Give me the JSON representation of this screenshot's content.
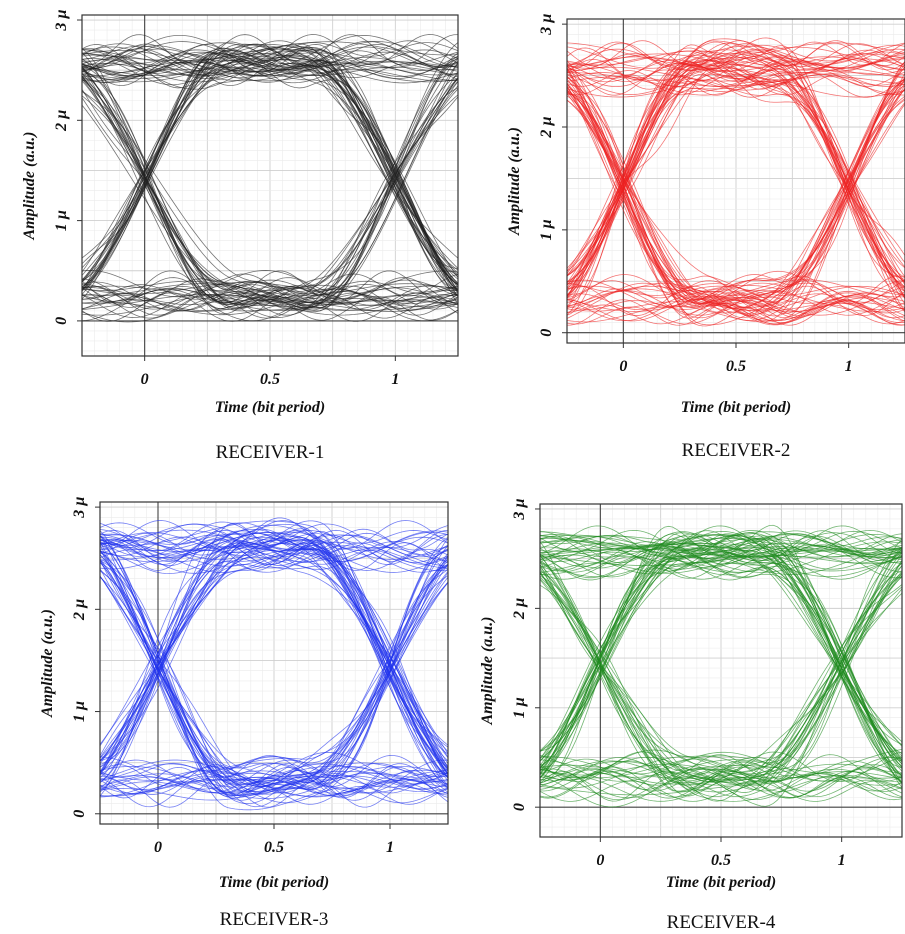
{
  "chart_data": [
    {
      "type": "line",
      "subtype": "eye-diagram",
      "caption": "RECEIVER-1",
      "xlabel": "Time (bit period)",
      "ylabel": "Amplitude (a.u.)",
      "xlim": [
        -0.25,
        1.25
      ],
      "ylim": [
        -0.35,
        3.05
      ],
      "xticks": [
        {
          "value": 0,
          "label": "0"
        },
        {
          "value": 0.5,
          "label": "0.5"
        },
        {
          "value": 1,
          "label": "1"
        }
      ],
      "yticks": [
        {
          "value": 0,
          "label": "0"
        },
        {
          "value": 1,
          "label": "1 µ"
        },
        {
          "value": 2,
          "label": "2 µ"
        },
        {
          "value": 3,
          "label": "3 µ"
        }
      ],
      "trace_color": "#222222",
      "eye": {
        "high_level": 2.6,
        "low_level": 0.25,
        "crossing_level": 1.4,
        "crossing_times": [
          0,
          1
        ],
        "high_spread": 0.3,
        "low_spread": 0.25
      },
      "grid": true
    },
    {
      "type": "line",
      "subtype": "eye-diagram",
      "caption": "RECEIVER-2",
      "xlabel": "Time (bit period)",
      "ylabel": "Amplitude (a.u.)",
      "xlim": [
        -0.25,
        1.25
      ],
      "ylim": [
        -0.1,
        3.05
      ],
      "xticks": [
        {
          "value": 0,
          "label": "0"
        },
        {
          "value": 0.5,
          "label": "0.5"
        },
        {
          "value": 1,
          "label": "1"
        }
      ],
      "yticks": [
        {
          "value": 0,
          "label": "0"
        },
        {
          "value": 1,
          "label": "1 µ"
        },
        {
          "value": 2,
          "label": "2 µ"
        },
        {
          "value": 3,
          "label": "3 µ"
        }
      ],
      "trace_color": "#ee2222",
      "eye": {
        "high_level": 2.55,
        "low_level": 0.3,
        "crossing_level": 1.4,
        "crossing_times": [
          0,
          1
        ],
        "high_spread": 0.35,
        "low_spread": 0.3
      },
      "grid": true
    },
    {
      "type": "line",
      "subtype": "eye-diagram",
      "caption": "RECEIVER-3",
      "xlabel": "Time (bit period)",
      "ylabel": "Amplitude (a.u.)",
      "xlim": [
        -0.25,
        1.25
      ],
      "ylim": [
        -0.1,
        3.05
      ],
      "xticks": [
        {
          "value": 0,
          "label": "0"
        },
        {
          "value": 0.5,
          "label": "0.5"
        },
        {
          "value": 1,
          "label": "1"
        }
      ],
      "yticks": [
        {
          "value": 0,
          "label": "0"
        },
        {
          "value": 1,
          "label": "1 µ"
        },
        {
          "value": 2,
          "label": "2 µ"
        },
        {
          "value": 3,
          "label": "3 µ"
        }
      ],
      "trace_color": "#2233ee",
      "eye": {
        "high_level": 2.6,
        "low_level": 0.3,
        "crossing_level": 1.4,
        "crossing_times": [
          0,
          1
        ],
        "high_spread": 0.3,
        "low_spread": 0.3
      },
      "grid": true
    },
    {
      "type": "line",
      "subtype": "eye-diagram",
      "caption": "RECEIVER-4",
      "xlabel": "Time (bit period)",
      "ylabel": "Amplitude (a.u.)",
      "xlim": [
        -0.25,
        1.25
      ],
      "ylim": [
        -0.3,
        3.05
      ],
      "xticks": [
        {
          "value": 0,
          "label": "0"
        },
        {
          "value": 0.5,
          "label": "0.5"
        },
        {
          "value": 1,
          "label": "1"
        }
      ],
      "yticks": [
        {
          "value": 0,
          "label": "0"
        },
        {
          "value": 1,
          "label": "1 µ"
        },
        {
          "value": 2,
          "label": "2 µ"
        },
        {
          "value": 3,
          "label": "3 µ"
        }
      ],
      "trace_color": "#1f8a1f",
      "eye": {
        "high_level": 2.55,
        "low_level": 0.3,
        "crossing_level": 1.35,
        "crossing_times": [
          0,
          1
        ],
        "high_spread": 0.3,
        "low_spread": 0.3
      },
      "grid": true
    }
  ]
}
